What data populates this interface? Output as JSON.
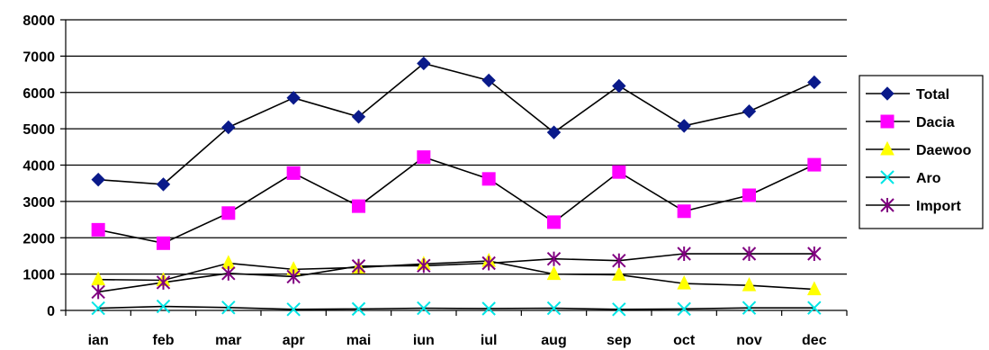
{
  "chart_data": {
    "type": "line",
    "categories": [
      "ian",
      "feb",
      "mar",
      "apr",
      "mai",
      "iun",
      "iul",
      "aug",
      "sep",
      "oct",
      "nov",
      "dec"
    ],
    "ylim": [
      0,
      8000
    ],
    "yticks": [
      0,
      1000,
      2000,
      3000,
      4000,
      5000,
      6000,
      7000,
      8000
    ],
    "grid": "horizontal",
    "legend_position": "right",
    "series": [
      {
        "name": "Total",
        "marker": "diamond",
        "color": "#0a1a8a",
        "values": [
          3600,
          3470,
          5040,
          5850,
          5330,
          6800,
          6330,
          4900,
          6180,
          5080,
          5480,
          6280
        ]
      },
      {
        "name": "Dacia",
        "marker": "square",
        "color": "#ff00ff",
        "values": [
          2220,
          1850,
          2680,
          3780,
          2870,
          4220,
          3620,
          2430,
          3810,
          2730,
          3170,
          4010
        ]
      },
      {
        "name": "Daewoo",
        "marker": "triangle",
        "color": "#ffff00",
        "values": [
          850,
          830,
          1300,
          1130,
          1180,
          1280,
          1360,
          1000,
          980,
          740,
          690,
          580
        ]
      },
      {
        "name": "Aro",
        "marker": "x",
        "color": "#00e5e5",
        "values": [
          60,
          110,
          80,
          30,
          40,
          60,
          50,
          60,
          30,
          40,
          70,
          70
        ]
      },
      {
        "name": "Import",
        "marker": "star",
        "color": "#800080",
        "values": [
          510,
          770,
          1020,
          930,
          1220,
          1230,
          1300,
          1420,
          1370,
          1560,
          1560,
          1560
        ]
      }
    ]
  }
}
